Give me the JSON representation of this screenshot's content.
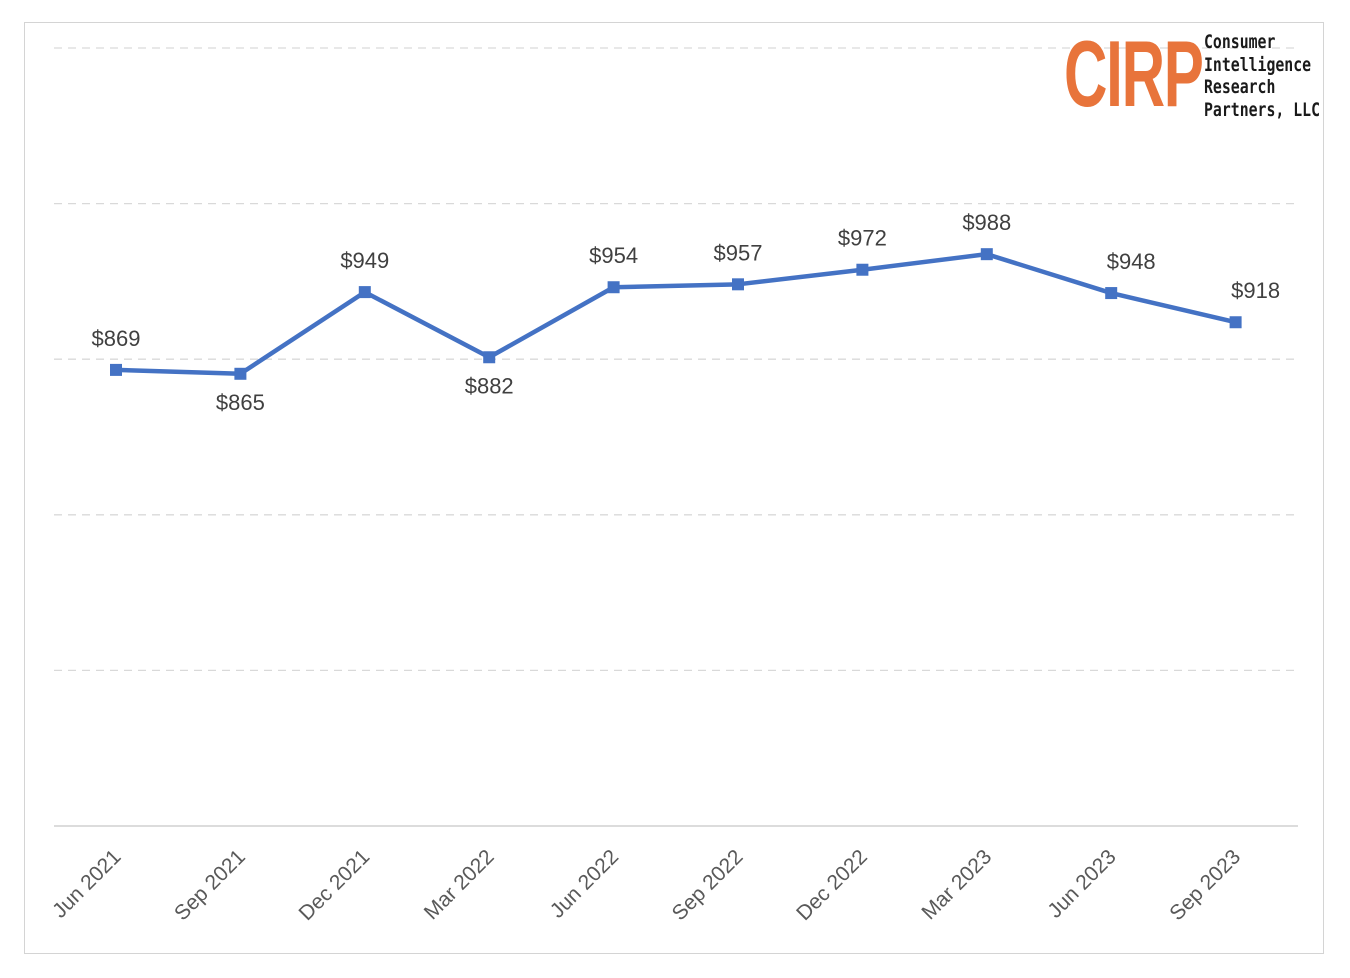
{
  "logo": {
    "mark": "CIRP",
    "lines": [
      "Consumer",
      "Intelligence",
      "Research",
      "Partners, LLC"
    ],
    "color": "#e8743b"
  },
  "chart_data": {
    "type": "line",
    "categories": [
      "Jun 2021",
      "Sep 2021",
      "Dec 2021",
      "Mar 2022",
      "Jun 2022",
      "Sep 2022",
      "Dec 2022",
      "Mar 2023",
      "Jun 2023",
      "Sep 2023"
    ],
    "series": [
      {
        "values": [
          869,
          865,
          949,
          882,
          954,
          957,
          972,
          988,
          948,
          918
        ],
        "labels": [
          "$869",
          "$865",
          "$949",
          "$882",
          "$954",
          "$957",
          "$972",
          "$988",
          "$948",
          "$918"
        ],
        "color": "#4472c4"
      }
    ],
    "title": "",
    "xlabel": "",
    "ylabel": "",
    "ylim": [
      400,
      1200
    ],
    "grid": true,
    "legend": "none"
  }
}
